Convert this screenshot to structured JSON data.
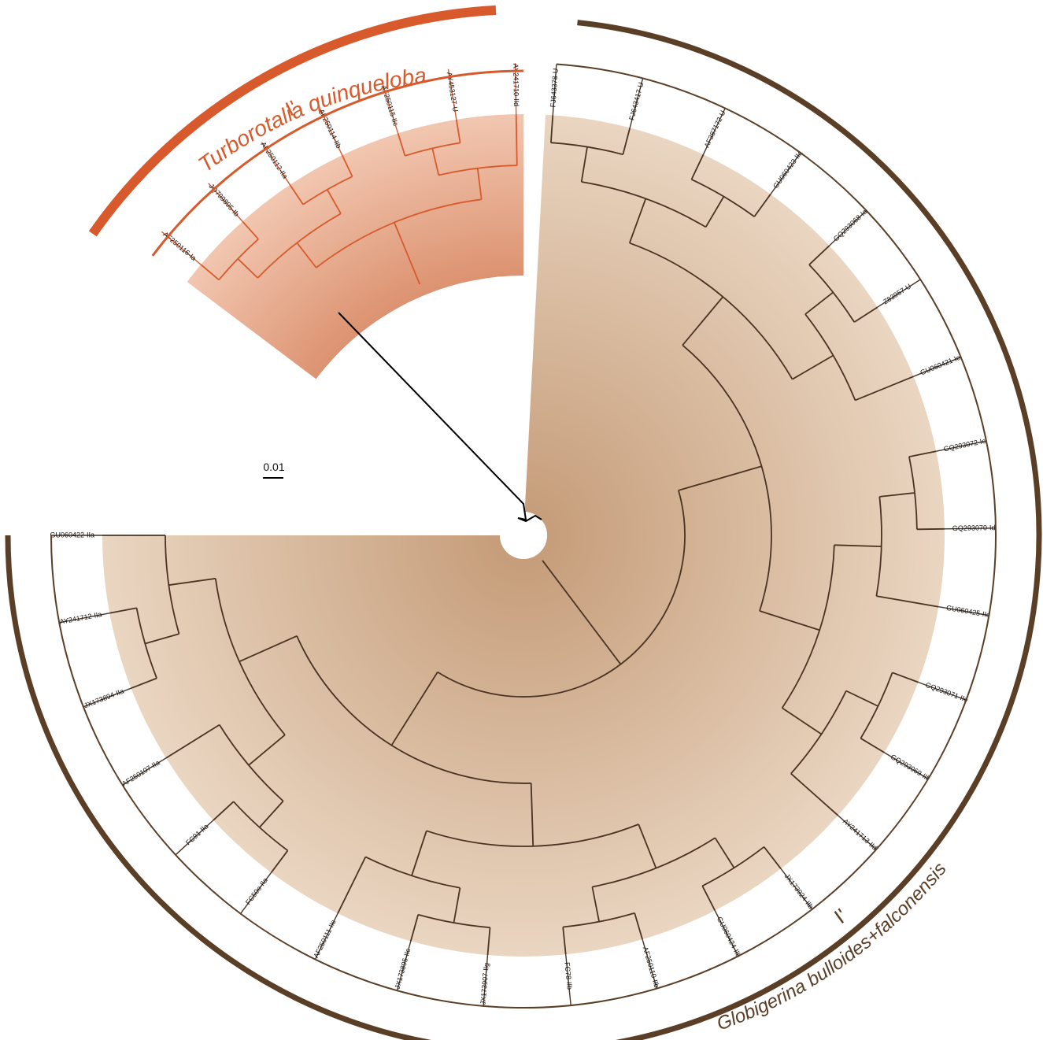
{
  "scale_bar": {
    "label": "0.01"
  },
  "colors": {
    "orange": "#d85a2c",
    "orange_fill_inner": "#d98a66",
    "orange_fill_outer": "#f2c8b2",
    "brown": "#4a3322",
    "brown_arc": "#5a3e26",
    "brown_fill_inner": "#c49a76",
    "brown_fill_outer": "#ead6c2",
    "root_branch": "#000000"
  },
  "clades": [
    {
      "id": "orange",
      "species": "Turborotalia quinqueloba",
      "lineage": "I'",
      "leaves": [
        "AF250116-Ia",
        "JQ799895-Ib",
        "AF250112-IIa",
        "AF250114-IIb",
        "AF250115-IIc",
        "AY453127-U",
        "AY241710-IId"
      ]
    },
    {
      "id": "brown",
      "species": "Globigerina bulloides+falconensis",
      "lineage": "I'",
      "leaves": [
        "FJ643378-U",
        "FJ643417-U",
        "AF387172-U",
        "GU060423-IIa",
        "GQ293068-Ia",
        "Z83957-U",
        "GU060421-Ie",
        "GQ293072-Ic",
        "GQ293070-Id",
        "GU060425-IIe",
        "GQ293071-IIe",
        "GQ293069-IIf",
        "AY241713-IId",
        "JX173924-IIb",
        "GU060424-IIb",
        "AF250110-IIb",
        "FC78-IIb",
        "JX173907-IIg",
        "JX173895-IIc",
        "AF250111-IIc",
        "FC50o-IIa",
        "FC91-IIa",
        "AF250107-IIa",
        "JX173894-IIa",
        "AY241712-IIa",
        "GU060422-IIa"
      ]
    }
  ]
}
